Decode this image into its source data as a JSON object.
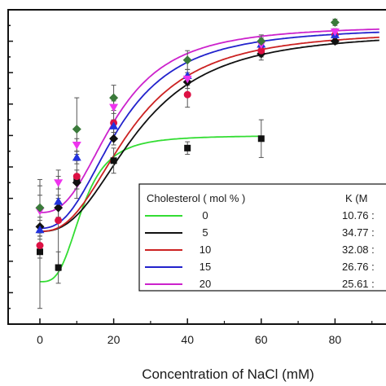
{
  "chart_data": {
    "type": "scatter",
    "xlabel": "Concentration of NaCl (mM)",
    "ylabel": "",
    "title": "",
    "xlim": [
      -5,
      95
    ],
    "ylim": [
      0,
      1.0
    ],
    "x_ticks": [
      0,
      20,
      40,
      60,
      80
    ],
    "legend": {
      "title": "Cholesterol ( mol % )",
      "k_header": "K (M",
      "placement": "bottom-right"
    },
    "series": [
      {
        "name": "0",
        "k_value": "10.76 :",
        "color": "#33dd33",
        "marker_color": "#111111",
        "marker": "square",
        "x": [
          0,
          5,
          10,
          20,
          40,
          60
        ],
        "y": [
          0.23,
          0.18,
          0.46,
          0.52,
          0.56,
          0.59
        ],
        "err": [
          0.18,
          0.05,
          0.03,
          0.04,
          0.02,
          0.06
        ],
        "fit": {
          "min": 0.135,
          "max": 0.6,
          "x50": 11.5,
          "n": 3.2
        }
      },
      {
        "name": "5",
        "k_value": "34.77 :",
        "color": "#111111",
        "marker_color": "#111111",
        "marker": "diamond",
        "x": [
          0,
          5,
          10,
          20,
          40,
          60,
          80
        ],
        "y": [
          0.31,
          0.37,
          0.45,
          0.59,
          0.77,
          0.86,
          0.9
        ],
        "err": [
          0.03,
          0.03,
          0.02,
          0.02,
          0.02,
          0.02,
          0.01
        ],
        "fit": {
          "min": 0.295,
          "max": 0.93,
          "x50": 26.5,
          "n": 2.5
        }
      },
      {
        "name": "10",
        "k_value": "32.08 :",
        "color": "#cc2222",
        "marker_color": "#dd1144",
        "marker": "circle",
        "x": [
          0,
          5,
          10,
          20,
          40,
          60,
          80
        ],
        "y": [
          0.25,
          0.33,
          0.47,
          0.64,
          0.73,
          0.87,
          0.92
        ],
        "err": [
          0.04,
          0.16,
          0.07,
          0.05,
          0.04,
          0.02,
          0.01
        ],
        "fit": {
          "min": 0.295,
          "max": 0.935,
          "x50": 24.5,
          "n": 2.5
        }
      },
      {
        "name": "15",
        "k_value": "26.76 :",
        "color": "#2222cc",
        "marker_color": "#2233dd",
        "marker": "triangle",
        "x": [
          0,
          5,
          10,
          20,
          40,
          60,
          80
        ],
        "y": [
          0.3,
          0.39,
          0.53,
          0.63,
          0.79,
          0.89,
          0.92
        ],
        "err": [
          0.03,
          0.02,
          0.02,
          0.02,
          0.02,
          0.02,
          0.01
        ],
        "fit": {
          "min": 0.305,
          "max": 0.945,
          "x50": 21.5,
          "n": 2.5
        }
      },
      {
        "name": "20",
        "k_value": "25.61 :",
        "color": "#cc22cc",
        "marker_color": "#ee33ee",
        "marker": "triangle-down",
        "x": [
          0,
          5,
          10,
          20,
          40,
          60,
          80
        ],
        "y": [
          0.36,
          0.45,
          0.57,
          0.69,
          0.78,
          0.89,
          0.93
        ],
        "err": [
          0.08,
          0.02,
          0.02,
          0.02,
          0.02,
          0.01,
          0.01
        ],
        "fit": {
          "min": 0.355,
          "max": 0.95,
          "x50": 20.5,
          "n": 2.6
        }
      }
    ],
    "extra_markers": [
      {
        "x": 0,
        "y": 0.37,
        "marker": "diamond",
        "color": "#3a7a3a",
        "err": 0.09
      },
      {
        "x": 10,
        "y": 0.62,
        "marker": "diamond",
        "color": "#3a7a3a",
        "err": 0.1
      },
      {
        "x": 20,
        "y": 0.72,
        "marker": "diamond",
        "color": "#3a7a3a",
        "err": 0.04
      },
      {
        "x": 40,
        "y": 0.84,
        "marker": "diamond",
        "color": "#3a7a3a",
        "err": 0.03
      },
      {
        "x": 60,
        "y": 0.9,
        "marker": "diamond",
        "color": "#3a7a3a",
        "err": 0.02
      },
      {
        "x": 80,
        "y": 0.96,
        "marker": "diamond",
        "color": "#3a7a3a",
        "err": 0.01
      }
    ]
  }
}
